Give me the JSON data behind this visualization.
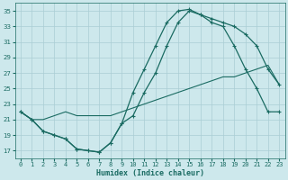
{
  "title": "",
  "xlabel": "Humidex (Indice chaleur)",
  "bg_color": "#cde8ec",
  "grid_color": "#aacdd4",
  "line_color": "#1a6b62",
  "xlim": [
    -0.5,
    23.5
  ],
  "ylim": [
    16.0,
    36.0
  ],
  "xticks": [
    0,
    1,
    2,
    3,
    4,
    5,
    6,
    7,
    8,
    9,
    10,
    11,
    12,
    13,
    14,
    15,
    16,
    17,
    18,
    19,
    20,
    21,
    22,
    23
  ],
  "yticks": [
    17,
    19,
    21,
    23,
    25,
    27,
    29,
    31,
    33,
    35
  ],
  "line1_x": [
    0,
    1,
    2,
    3,
    4,
    5,
    6,
    7,
    8,
    9,
    10,
    11,
    12,
    13,
    14,
    15,
    16,
    17,
    18,
    19,
    20,
    21,
    22,
    23
  ],
  "line1_y": [
    22.0,
    21.0,
    19.5,
    19.0,
    18.5,
    17.2,
    17.0,
    16.8,
    18.0,
    20.5,
    21.5,
    24.5,
    27.0,
    30.5,
    33.5,
    35.0,
    34.5,
    34.0,
    33.5,
    33.0,
    32.0,
    30.5,
    27.5,
    25.5
  ],
  "line2_x": [
    0,
    1,
    2,
    3,
    4,
    5,
    6,
    7,
    8,
    9,
    10,
    11,
    12,
    13,
    14,
    15,
    16,
    17,
    18,
    19,
    20,
    21,
    22,
    23
  ],
  "line2_y": [
    22.0,
    21.0,
    19.5,
    19.0,
    18.5,
    17.2,
    17.0,
    16.8,
    18.0,
    20.5,
    24.5,
    27.5,
    30.5,
    33.5,
    35.0,
    35.2,
    34.5,
    33.5,
    33.0,
    30.5,
    27.5,
    25.0,
    22.0,
    22.0
  ],
  "line3_x": [
    0,
    1,
    2,
    3,
    4,
    5,
    6,
    7,
    8,
    9,
    10,
    11,
    12,
    13,
    14,
    15,
    16,
    17,
    18,
    19,
    20,
    21,
    22,
    23
  ],
  "line3_y": [
    22.0,
    21.0,
    21.0,
    21.5,
    22.0,
    21.5,
    21.5,
    21.5,
    21.5,
    22.0,
    22.5,
    23.0,
    23.5,
    24.0,
    24.5,
    25.0,
    25.5,
    26.0,
    26.5,
    26.5,
    27.0,
    27.5,
    28.0,
    25.5
  ],
  "tick_fontsize": 5,
  "xlabel_fontsize": 6
}
